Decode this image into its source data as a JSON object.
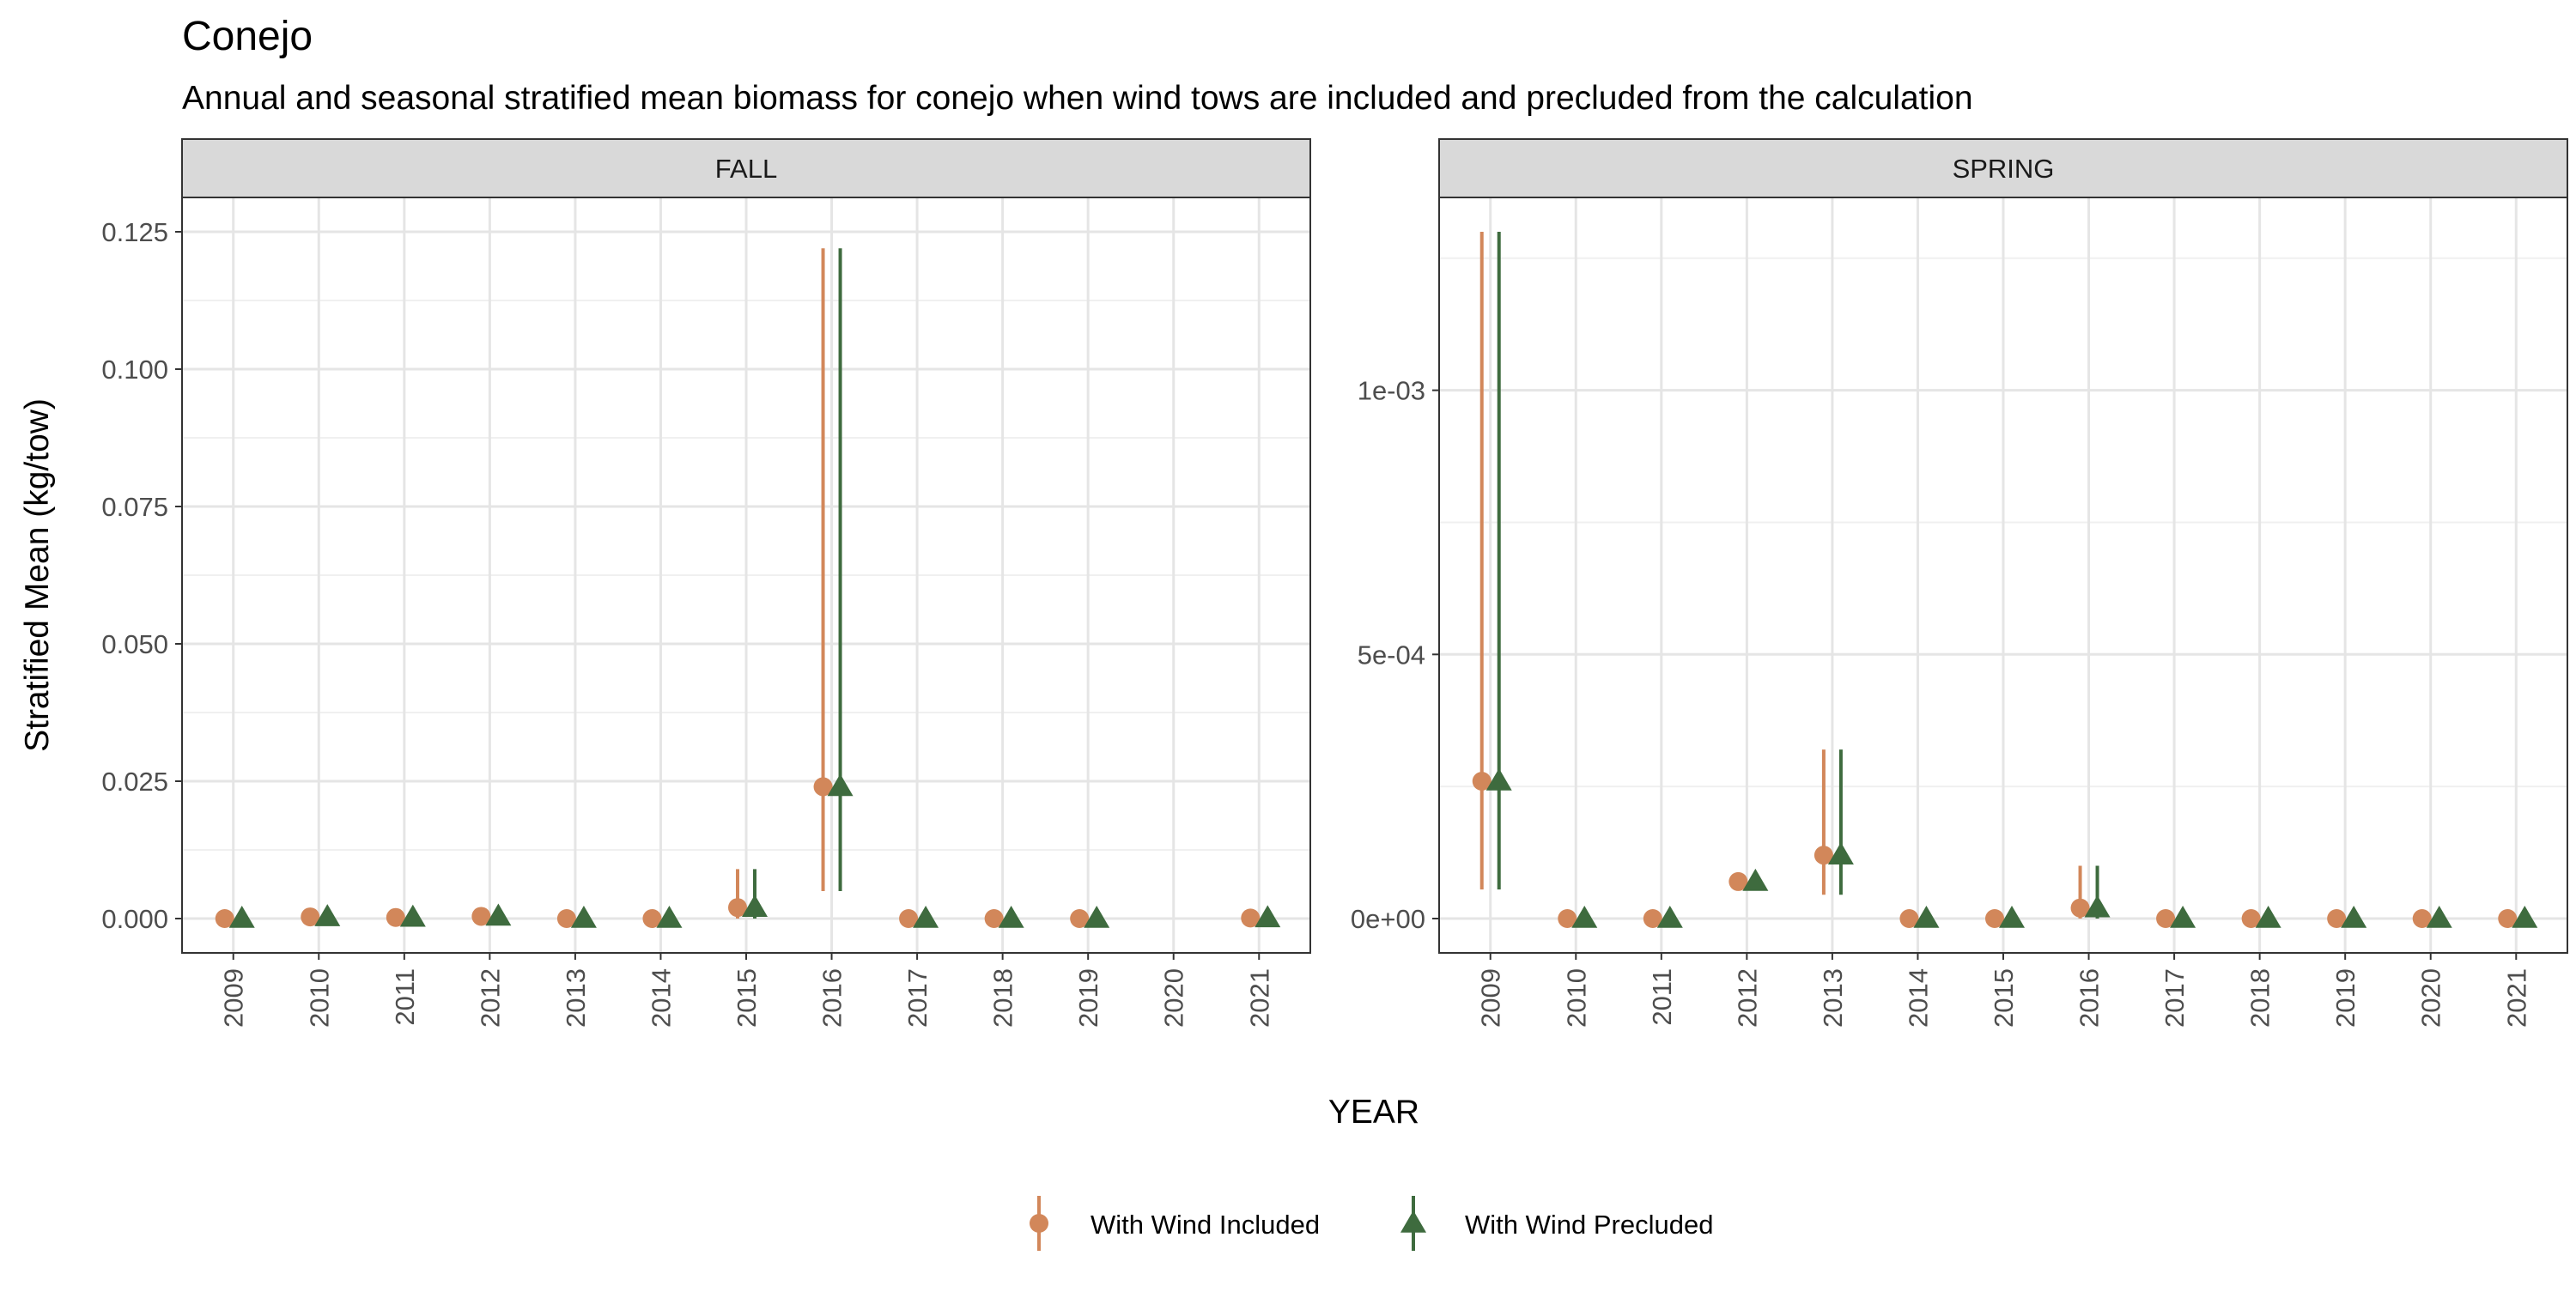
{
  "title": "Conejo",
  "subtitle": "Annual and seasonal stratified mean biomass for conejo when wind tows are included and precluded from the calculation",
  "ylabel": "Stratified Mean (kg/tow)",
  "xlabel": "YEAR",
  "legend": [
    {
      "name": "With Wind Included",
      "color": "#D2875A",
      "shape": "circle"
    },
    {
      "name": "With Wind Precluded",
      "color": "#3E6B3E",
      "shape": "triangle"
    }
  ],
  "chart_data": [
    {
      "type": "scatter",
      "panel": "FALL",
      "categories": [
        "2009",
        "2010",
        "2011",
        "2012",
        "2013",
        "2014",
        "2015",
        "2016",
        "2017",
        "2018",
        "2019",
        "2020",
        "2021"
      ],
      "ylim": [
        -0.00625,
        0.13125
      ],
      "yticks": [
        0.0,
        0.025,
        0.05,
        0.075,
        0.1,
        0.125
      ],
      "ytick_labels": [
        "0.000",
        "0.025",
        "0.050",
        "0.075",
        "0.100",
        "0.125"
      ],
      "grid": true,
      "series": [
        {
          "name": "With Wind Included",
          "values": [
            0.0,
            0.0003,
            0.0002,
            0.0004,
            0.0,
            0.0,
            0.002,
            0.024,
            0.0,
            0.0,
            0.0,
            null,
            0.0001
          ],
          "lower": [
            0.0,
            0.0003,
            0.0002,
            0.0004,
            0.0,
            0.0,
            0.0,
            0.005,
            0.0,
            0.0,
            0.0,
            null,
            0.0001
          ],
          "upper": [
            0.0,
            0.0003,
            0.0002,
            0.0004,
            0.0,
            0.0,
            0.009,
            0.122,
            0.0,
            0.0,
            0.0,
            null,
            0.0001
          ]
        },
        {
          "name": "With Wind Precluded",
          "values": [
            0.0,
            0.0003,
            0.0002,
            0.0004,
            0.0,
            0.0,
            0.002,
            0.024,
            0.0,
            0.0,
            0.0,
            null,
            0.0001
          ],
          "lower": [
            0.0,
            0.0003,
            0.0002,
            0.0004,
            0.0,
            0.0,
            0.0,
            0.005,
            0.0,
            0.0,
            0.0,
            null,
            0.0001
          ],
          "upper": [
            0.0,
            0.0003,
            0.0002,
            0.0004,
            0.0,
            0.0,
            0.009,
            0.122,
            0.0,
            0.0,
            0.0,
            null,
            0.0001
          ]
        }
      ]
    },
    {
      "type": "scatter",
      "panel": "SPRING",
      "categories": [
        "2009",
        "2010",
        "2011",
        "2012",
        "2013",
        "2014",
        "2015",
        "2016",
        "2017",
        "2018",
        "2019",
        "2020",
        "2021"
      ],
      "ylim": [
        -6.5e-05,
        0.001365
      ],
      "yticks": [
        0.0,
        0.0005,
        0.001
      ],
      "ytick_labels": [
        "0e+00",
        "5e-04",
        "1e-03"
      ],
      "grid": true,
      "series": [
        {
          "name": "With Wind Included",
          "values": [
            0.00026,
            0.0,
            0.0,
            7e-05,
            0.00012,
            0.0,
            0.0,
            2e-05,
            0.0,
            0.0,
            0.0,
            0.0,
            0.0
          ],
          "lower": [
            5.5e-05,
            0.0,
            0.0,
            7e-05,
            4.5e-05,
            0.0,
            0.0,
            0.0,
            0.0,
            0.0,
            0.0,
            0.0,
            0.0
          ],
          "upper": [
            0.0013,
            0.0,
            0.0,
            7e-05,
            0.00032,
            0.0,
            0.0,
            0.0001,
            0.0,
            0.0,
            0.0,
            0.0,
            0.0
          ]
        },
        {
          "name": "With Wind Precluded",
          "values": [
            0.00026,
            0.0,
            0.0,
            7e-05,
            0.00012,
            0.0,
            0.0,
            2e-05,
            0.0,
            0.0,
            0.0,
            0.0,
            0.0
          ],
          "lower": [
            5.5e-05,
            0.0,
            0.0,
            7e-05,
            4.5e-05,
            0.0,
            0.0,
            0.0,
            0.0,
            0.0,
            0.0,
            0.0,
            0.0
          ],
          "upper": [
            0.0013,
            0.0,
            0.0,
            7e-05,
            0.00032,
            0.0,
            0.0,
            0.0001,
            0.0,
            0.0,
            0.0,
            0.0,
            0.0
          ]
        }
      ]
    }
  ]
}
